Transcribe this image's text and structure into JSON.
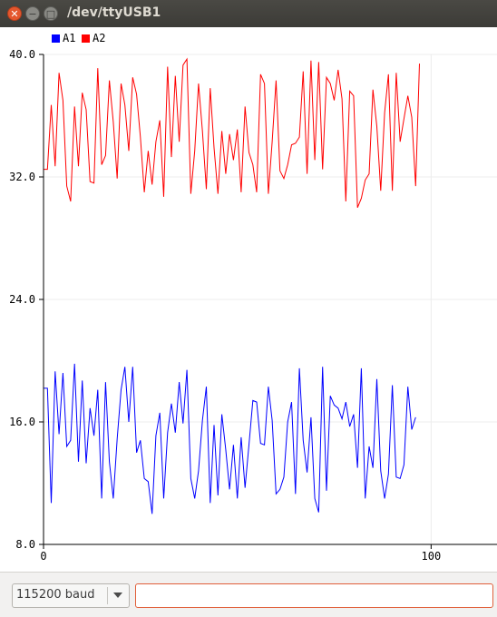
{
  "window": {
    "title": "/dev/ttyUSB1"
  },
  "colors": {
    "a1": "#0000ff",
    "a2": "#ff0000",
    "grid": "#ececec",
    "titlebar": "#3c3b37"
  },
  "chart_data": {
    "type": "line",
    "legend_placement": "top-left",
    "grid": true,
    "xlim": [
      0,
      117
    ],
    "ylim": [
      8,
      40
    ],
    "x_ticks": [
      "0",
      "100"
    ],
    "y_ticks": [
      "8.0",
      "16.0",
      "24.0",
      "32.0",
      "40.0"
    ],
    "series": [
      {
        "name": "A1",
        "color": "#0000ff",
        "values": [
          18.2,
          18.2,
          10.7,
          19.3,
          15.2,
          19.2,
          14.4,
          14.8,
          19.8,
          13.4,
          18.7,
          13.3,
          16.9,
          15.1,
          18.1,
          11.0,
          18.6,
          13.4,
          11.0,
          14.9,
          18.1,
          19.6,
          16.0,
          19.6,
          14.0,
          14.8,
          12.3,
          12.1,
          10.0,
          15.1,
          16.6,
          11.0,
          15.3,
          17.2,
          15.3,
          18.6,
          15.9,
          19.4,
          12.3,
          11.0,
          12.8,
          16.1,
          18.3,
          10.7,
          15.8,
          11.2,
          16.5,
          14.2,
          11.6,
          14.5,
          11.0,
          15.0,
          11.7,
          14.5,
          17.4,
          17.3,
          14.6,
          14.5,
          18.3,
          16.1,
          11.3,
          11.6,
          12.4,
          16.0,
          17.3,
          11.3,
          19.5,
          14.8,
          12.7,
          16.3,
          11.0,
          10.1,
          19.6,
          11.5,
          17.7,
          17.1,
          16.9,
          16.2,
          17.3,
          15.7,
          16.5,
          13.0,
          19.5,
          11.0,
          14.4,
          13.0,
          18.8,
          12.8,
          11.0,
          12.6,
          18.4,
          12.4,
          12.3,
          13.2,
          18.3,
          15.5,
          16.3
        ]
      },
      {
        "name": "A2",
        "color": "#ff0000",
        "values": [
          32.5,
          32.5,
          36.7,
          32.7,
          38.8,
          37.0,
          31.4,
          30.4,
          36.6,
          32.7,
          37.5,
          36.4,
          31.7,
          31.6,
          39.1,
          32.8,
          33.4,
          38.3,
          35.6,
          31.9,
          38.1,
          36.7,
          33.7,
          38.5,
          37.4,
          34.6,
          31.0,
          33.7,
          31.5,
          34.3,
          35.7,
          30.7,
          39.2,
          33.3,
          38.6,
          34.3,
          39.3,
          39.7,
          30.9,
          33.7,
          38.1,
          35.0,
          31.2,
          37.8,
          33.9,
          30.9,
          35.0,
          32.2,
          34.8,
          33.1,
          35.1,
          31.0,
          36.6,
          33.6,
          32.8,
          31.0,
          38.7,
          38.1,
          30.9,
          34.3,
          38.3,
          32.4,
          31.9,
          32.8,
          34.1,
          34.2,
          34.6,
          38.9,
          32.2,
          39.6,
          33.1,
          39.5,
          32.5,
          38.5,
          38.1,
          37.0,
          39.0,
          37.1,
          30.4,
          37.6,
          37.3,
          30.0,
          30.6,
          31.8,
          32.2,
          37.7,
          35.3,
          31.1,
          36.2,
          38.7,
          31.1,
          38.8,
          34.3,
          35.8,
          37.3,
          35.9,
          31.4,
          39.4
        ]
      }
    ]
  },
  "controls": {
    "baud_label": "115200 baud",
    "send_value": ""
  }
}
